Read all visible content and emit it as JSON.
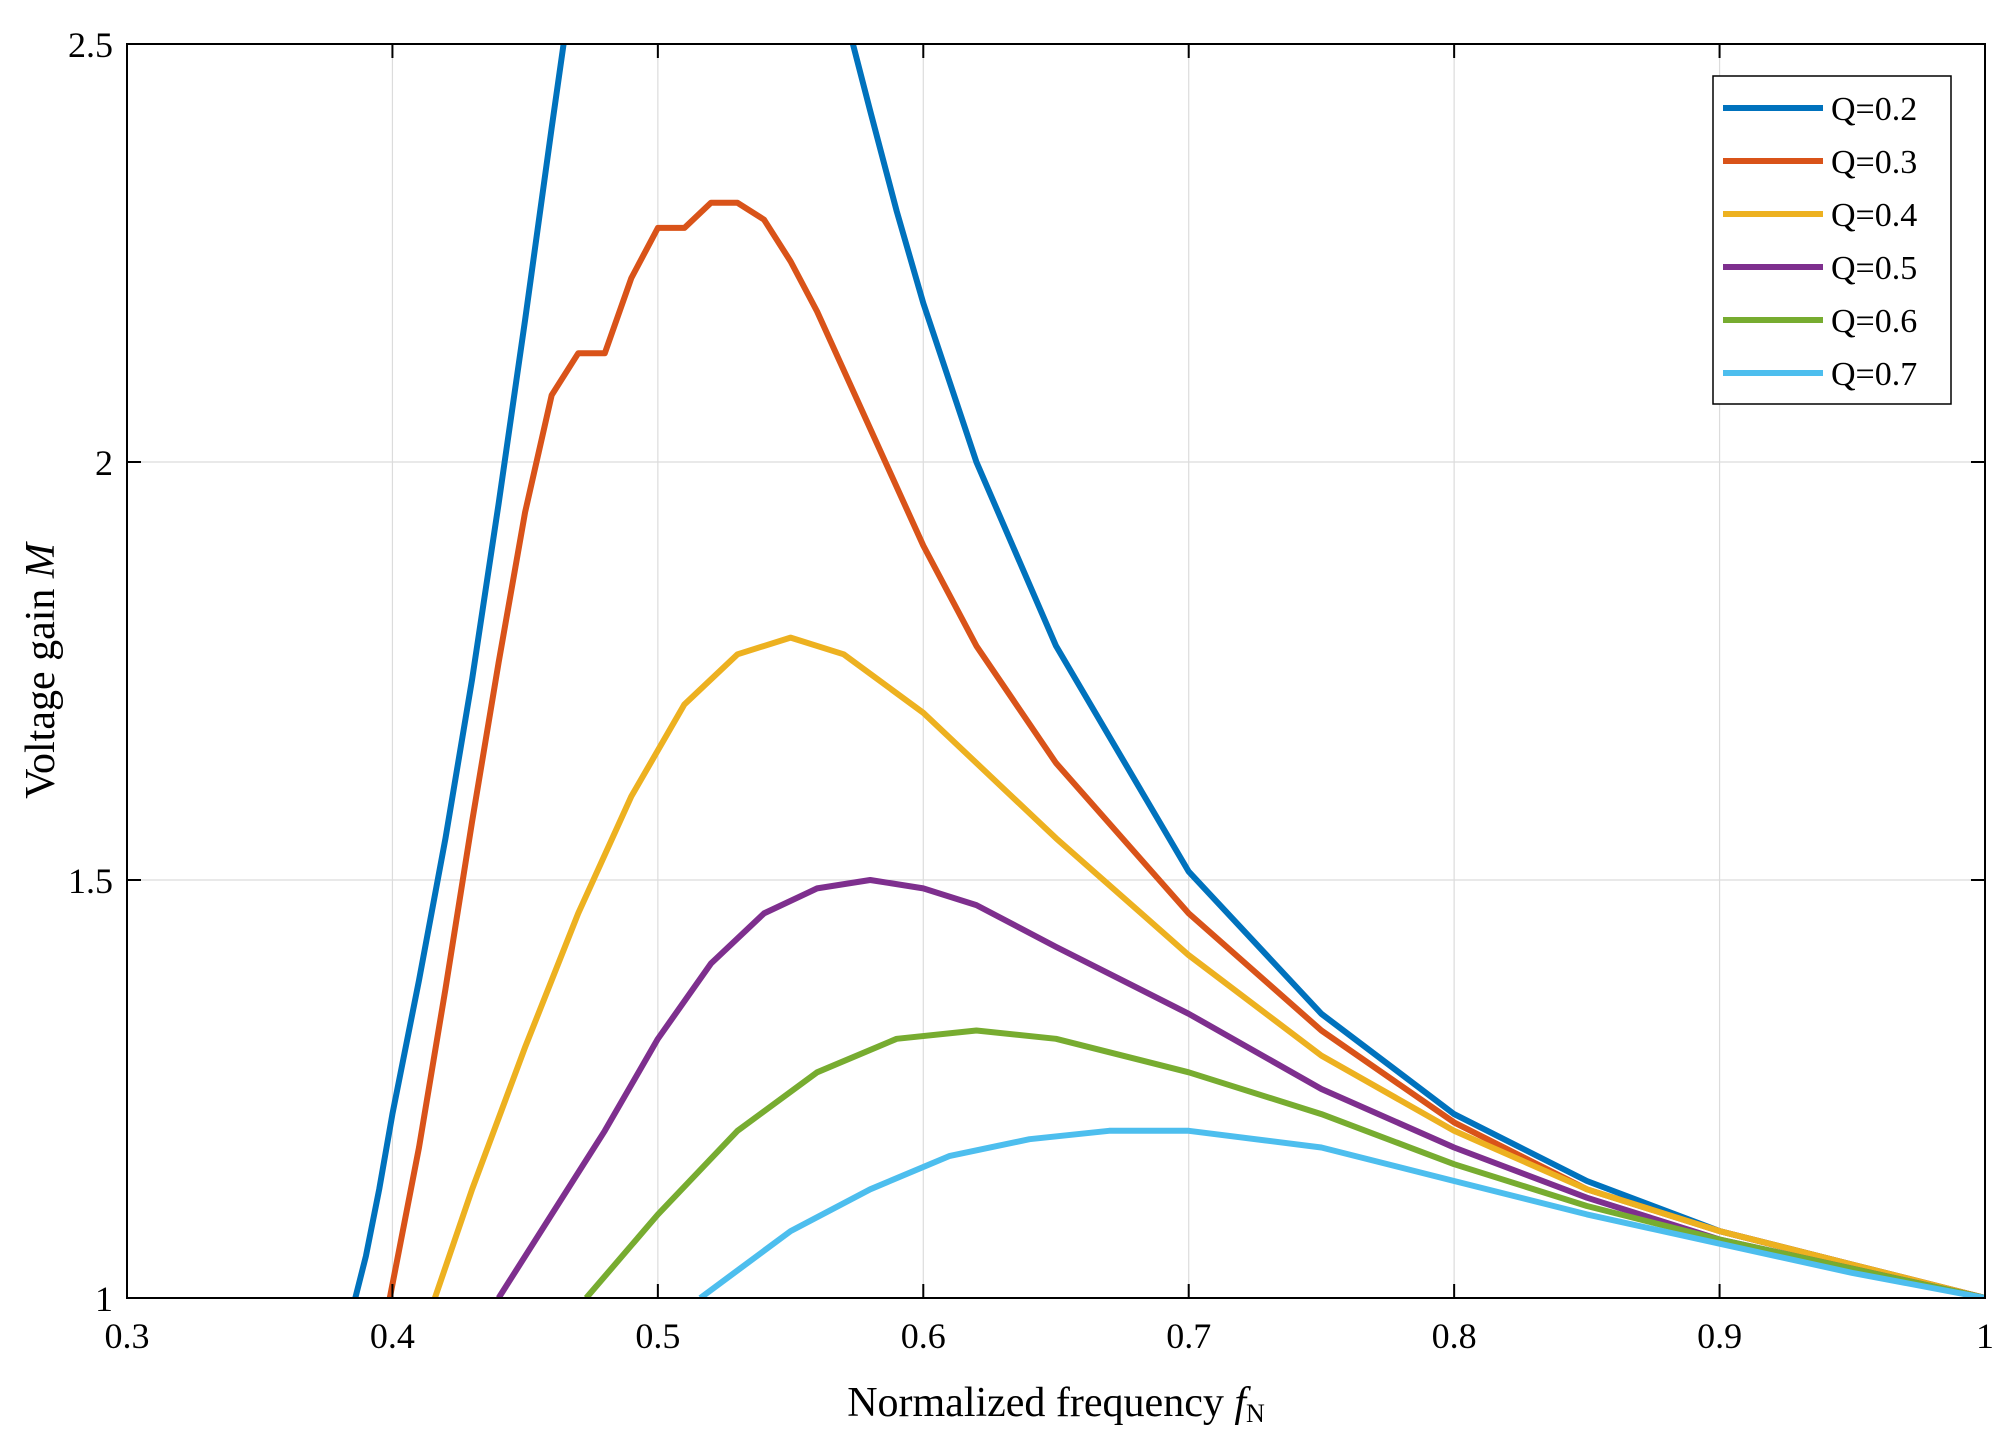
{
  "chart_data": {
    "type": "line",
    "title": "",
    "xlabel": "Normalized frequency",
    "xlabel_symbol": "f",
    "xlabel_subscript": "N",
    "ylabel": "Voltage gain",
    "ylabel_symbol": "M",
    "xlim": [
      0.3,
      1.0
    ],
    "ylim": [
      1.0,
      2.5
    ],
    "x_ticks": [
      0.3,
      0.4,
      0.5,
      0.6,
      0.7,
      0.8,
      0.9,
      1.0
    ],
    "x_tick_labels": [
      "0.3",
      "0.4",
      "0.5",
      "0.6",
      "0.7",
      "0.8",
      "0.9",
      "1"
    ],
    "y_ticks": [
      1.0,
      1.5,
      2.0,
      2.5
    ],
    "y_tick_labels": [
      "1",
      "1.5",
      "2",
      "2.5"
    ],
    "grid": true,
    "legend_position": "top-right",
    "series": [
      {
        "name": "Q=0.2",
        "color": "#0072BD",
        "segments": [
          [
            [
              0.386,
              1.0
            ],
            [
              0.39,
              1.05
            ],
            [
              0.395,
              1.13
            ],
            [
              0.4,
              1.22
            ],
            [
              0.41,
              1.38
            ],
            [
              0.42,
              1.55
            ],
            [
              0.43,
              1.74
            ],
            [
              0.44,
              1.95
            ],
            [
              0.45,
              2.17
            ],
            [
              0.46,
              2.4
            ],
            [
              0.4645,
              2.5
            ]
          ],
          [
            [
              0.5735,
              2.5
            ],
            [
              0.58,
              2.42
            ],
            [
              0.59,
              2.3
            ],
            [
              0.6,
              2.19
            ],
            [
              0.62,
              2.0
            ],
            [
              0.65,
              1.78
            ],
            [
              0.7,
              1.51
            ],
            [
              0.75,
              1.34
            ],
            [
              0.8,
              1.22
            ],
            [
              0.85,
              1.14
            ],
            [
              0.9,
              1.08
            ],
            [
              0.95,
              1.04
            ],
            [
              1.0,
              1.0
            ]
          ]
        ]
      },
      {
        "name": "Q=0.3",
        "color": "#D95319",
        "segments": [
          [
            [
              0.399,
              1.0
            ],
            [
              0.41,
              1.18
            ],
            [
              0.42,
              1.37
            ],
            [
              0.43,
              1.57
            ],
            [
              0.44,
              1.76
            ],
            [
              0.45,
              1.94
            ],
            [
              0.46,
              2.08
            ],
            [
              0.47,
              2.13
            ],
            [
              0.48,
              2.13
            ],
            [
              0.49,
              2.22
            ],
            [
              0.5,
              2.28
            ],
            [
              0.51,
              2.28
            ],
            [
              0.52,
              2.31
            ],
            [
              0.53,
              2.31
            ],
            [
              0.54,
              2.29
            ],
            [
              0.55,
              2.24
            ],
            [
              0.56,
              2.18
            ],
            [
              0.58,
              2.04
            ],
            [
              0.6,
              1.9
            ],
            [
              0.62,
              1.78
            ],
            [
              0.65,
              1.64
            ],
            [
              0.7,
              1.46
            ],
            [
              0.75,
              1.32
            ],
            [
              0.8,
              1.21
            ],
            [
              0.85,
              1.13
            ],
            [
              0.9,
              1.08
            ],
            [
              0.95,
              1.04
            ],
            [
              1.0,
              1.0
            ]
          ]
        ]
      },
      {
        "name": "Q=0.4",
        "color": "#EDB120",
        "segments": [
          [
            [
              0.416,
              1.0
            ],
            [
              0.43,
              1.13
            ],
            [
              0.45,
              1.3
            ],
            [
              0.47,
              1.46
            ],
            [
              0.49,
              1.6
            ],
            [
              0.51,
              1.71
            ],
            [
              0.53,
              1.77
            ],
            [
              0.55,
              1.79
            ],
            [
              0.57,
              1.77
            ],
            [
              0.6,
              1.7
            ],
            [
              0.65,
              1.55
            ],
            [
              0.7,
              1.41
            ],
            [
              0.75,
              1.29
            ],
            [
              0.8,
              1.2
            ],
            [
              0.85,
              1.13
            ],
            [
              0.9,
              1.08
            ],
            [
              0.95,
              1.04
            ],
            [
              1.0,
              1.0
            ]
          ]
        ]
      },
      {
        "name": "Q=0.5",
        "color": "#7E2F8E",
        "segments": [
          [
            [
              0.44,
              1.0
            ],
            [
              0.46,
              1.1
            ],
            [
              0.48,
              1.2
            ],
            [
              0.5,
              1.31
            ],
            [
              0.52,
              1.4
            ],
            [
              0.54,
              1.46
            ],
            [
              0.56,
              1.49
            ],
            [
              0.58,
              1.5
            ],
            [
              0.6,
              1.49
            ],
            [
              0.62,
              1.47
            ],
            [
              0.65,
              1.42
            ],
            [
              0.7,
              1.34
            ],
            [
              0.75,
              1.25
            ],
            [
              0.8,
              1.18
            ],
            [
              0.85,
              1.12
            ],
            [
              0.9,
              1.07
            ],
            [
              0.95,
              1.035
            ],
            [
              1.0,
              1.0
            ]
          ]
        ]
      },
      {
        "name": "Q=0.6",
        "color": "#77AC30",
        "segments": [
          [
            [
              0.473,
              1.0
            ],
            [
              0.5,
              1.1
            ],
            [
              0.53,
              1.2
            ],
            [
              0.56,
              1.27
            ],
            [
              0.59,
              1.31
            ],
            [
              0.62,
              1.32
            ],
            [
              0.65,
              1.31
            ],
            [
              0.7,
              1.27
            ],
            [
              0.75,
              1.22
            ],
            [
              0.8,
              1.16
            ],
            [
              0.85,
              1.11
            ],
            [
              0.9,
              1.07
            ],
            [
              0.95,
              1.035
            ],
            [
              1.0,
              1.0
            ]
          ]
        ]
      },
      {
        "name": "Q=0.7",
        "color": "#4DBEEE",
        "segments": [
          [
            [
              0.516,
              1.0
            ],
            [
              0.55,
              1.08
            ],
            [
              0.58,
              1.13
            ],
            [
              0.61,
              1.17
            ],
            [
              0.64,
              1.19
            ],
            [
              0.67,
              1.2
            ],
            [
              0.7,
              1.2
            ],
            [
              0.75,
              1.18
            ],
            [
              0.8,
              1.14
            ],
            [
              0.85,
              1.1
            ],
            [
              0.9,
              1.065
            ],
            [
              0.95,
              1.03
            ],
            [
              1.0,
              1.0
            ]
          ]
        ]
      }
    ]
  }
}
